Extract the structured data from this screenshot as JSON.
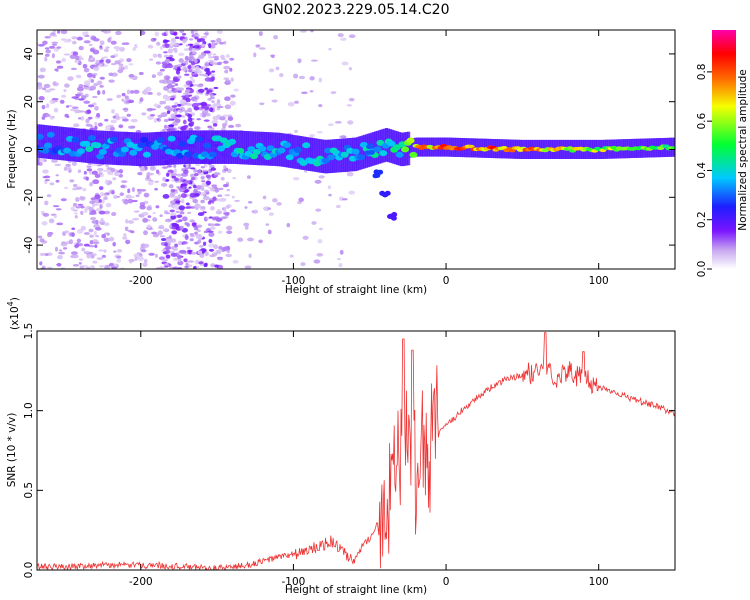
{
  "title": "GN02.2023.229.05.14.C20",
  "chart_data": [
    {
      "type": "heatmap",
      "xlabel": "Height of straight line (km)",
      "ylabel": "Frequency (Hz)",
      "xlim": [
        -268,
        150
      ],
      "ylim": [
        -50,
        50
      ],
      "xticks": [
        -200,
        -100,
        0,
        100
      ],
      "yticks": [
        -40,
        -20,
        0,
        20,
        40
      ],
      "colorbar": {
        "label": "Normalized spectral amplitude",
        "range": [
          0.0,
          0.97
        ],
        "ticks": [
          0.0,
          0.2,
          0.4,
          0.6,
          0.8
        ],
        "tick_labels": [
          "0.0",
          "0.2",
          "0.4",
          "0.6",
          "0.8"
        ],
        "colormap": [
          "#ffffff",
          "#c7a6f0",
          "#7a14ff",
          "#1e1eff",
          "#00c8ff",
          "#00ff33",
          "#f5ff00",
          "#ff6600",
          "#ff0000",
          "#ff00aa"
        ]
      },
      "ridge": [
        {
          "x": -260,
          "y": 3,
          "amp": 0.35
        },
        {
          "x": -230,
          "y": 1,
          "amp": 0.4
        },
        {
          "x": -200,
          "y": 0,
          "amp": 0.35
        },
        {
          "x": -170,
          "y": 1,
          "amp": 0.35
        },
        {
          "x": -140,
          "y": 1,
          "amp": 0.45
        },
        {
          "x": -110,
          "y": 0,
          "amp": 0.4
        },
        {
          "x": -80,
          "y": -3,
          "amp": 0.4
        },
        {
          "x": -60,
          "y": -2,
          "amp": 0.4
        },
        {
          "x": -40,
          "y": 2,
          "amp": 0.45
        },
        {
          "x": -30,
          "y": 0,
          "amp": 0.45
        },
        {
          "x": -20,
          "y": 1,
          "amp": 0.75
        },
        {
          "x": 0,
          "y": 1,
          "amp": 0.85
        },
        {
          "x": 50,
          "y": 0,
          "amp": 0.8
        },
        {
          "x": 100,
          "y": 0,
          "amp": 0.65
        },
        {
          "x": 150,
          "y": 1,
          "amp": 0.55
        }
      ],
      "branch": [
        {
          "x": -50,
          "y": 0
        },
        {
          "x": -45,
          "y": -10
        },
        {
          "x": -40,
          "y": -18
        },
        {
          "x": -35,
          "y": -28
        }
      ]
    },
    {
      "type": "line",
      "xlabel": "Height of straight line (km)",
      "ylabel": "SNR (10 * v/v)",
      "y_multiplier": "(x10",
      "y_multiplier_exp": "4",
      "y_multiplier_close": ")",
      "xlim": [
        -268,
        150
      ],
      "ylim": [
        0,
        1.5
      ],
      "xticks": [
        -200,
        -100,
        0,
        100
      ],
      "yticks": [
        0.0,
        0.5,
        1.0,
        1.5
      ],
      "ytick_labels": [
        "0.0",
        "0.5",
        "1.0",
        "1.5"
      ],
      "color": "#ee3333",
      "series": [
        {
          "x": [
            -268,
            -250,
            -230,
            -210,
            -190,
            -170,
            -150,
            -130,
            -110,
            -100,
            -90,
            -80,
            -75,
            -70,
            -65,
            -60,
            -55,
            -50,
            -45,
            -40,
            -35,
            -30,
            -25,
            -20,
            -15,
            -10,
            0,
            10,
            20,
            30,
            40,
            50,
            60,
            65,
            70,
            80,
            90,
            100,
            110,
            120,
            130,
            140,
            150
          ],
          "y": [
            0.02,
            0.02,
            0.03,
            0.03,
            0.03,
            0.02,
            0.01,
            0.03,
            0.08,
            0.1,
            0.12,
            0.16,
            0.18,
            0.14,
            0.08,
            0.05,
            0.15,
            0.2,
            0.3,
            0.4,
            0.55,
            0.6,
            0.65,
            0.6,
            0.7,
            0.8,
            0.9,
            1.0,
            1.08,
            1.15,
            1.2,
            1.22,
            1.25,
            1.3,
            1.2,
            1.25,
            1.2,
            1.15,
            1.12,
            1.08,
            1.05,
            1.02,
            0.98
          ],
          "peaks": [
            {
              "x": -28,
              "y": 1.45
            },
            {
              "x": -22,
              "y": 1.38
            },
            {
              "x": 65,
              "y": 1.49
            },
            {
              "x": 90,
              "y": 1.37
            }
          ]
        }
      ]
    }
  ]
}
